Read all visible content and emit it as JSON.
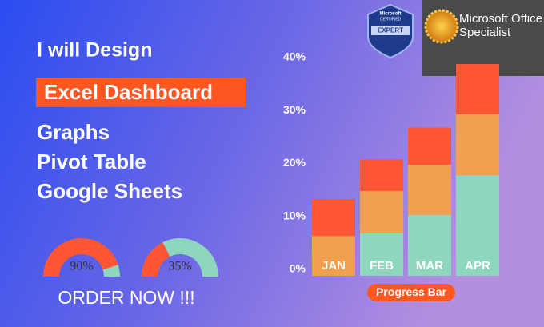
{
  "header": {
    "line1": "I will Design",
    "highlight": "Excel Dashboard",
    "items": [
      "Graphs",
      "Pivot Table",
      "Google Sheets"
    ]
  },
  "gauges": [
    {
      "value": 90,
      "label": "90%"
    },
    {
      "value": 35,
      "label": "35%"
    }
  ],
  "cta": "ORDER NOW !!!",
  "badges": {
    "expert_top": "Microsoft",
    "expert_sub": "CERTIFIED",
    "expert": "EXPERT",
    "specialist_line1": "Microsoft Office",
    "specialist_line2": "Specialist"
  },
  "chart": {
    "type": "bar",
    "stacked": true,
    "categories": [
      "JAN",
      "FEB",
      "MAR",
      "APR"
    ],
    "series": [
      {
        "color": "#8fd6c0",
        "values": [
          0,
          8,
          11.5,
          19
        ]
      },
      {
        "color": "#f0a04f",
        "values": [
          7.5,
          8,
          9.5,
          11.5
        ]
      },
      {
        "color": "#ff5733",
        "values": [
          7,
          6,
          7,
          9.5
        ]
      }
    ],
    "ylim": [
      0,
      40
    ],
    "yticks": [
      {
        "value": 0,
        "label": "0%"
      },
      {
        "value": 10,
        "label": "10%"
      },
      {
        "value": 20,
        "label": "20%"
      },
      {
        "value": 30,
        "label": "30%"
      },
      {
        "value": 40,
        "label": "40%"
      }
    ],
    "caption": "Progress Bar"
  }
}
